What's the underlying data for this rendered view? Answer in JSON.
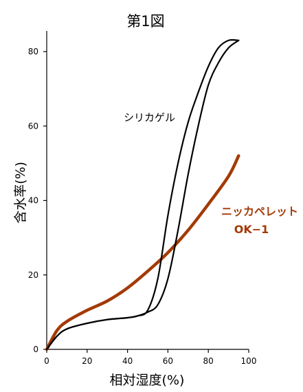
{
  "chart_data": {
    "type": "line",
    "title": "第1図",
    "xlabel": "相対湿度(%)",
    "ylabel": "含水率(%)",
    "xlim": [
      0,
      100
    ],
    "ylim": [
      0,
      85
    ],
    "xticks": [
      "0",
      "20",
      "40",
      "60",
      "80",
      "100"
    ],
    "yticks": [
      "0",
      "20",
      "40",
      "60",
      "80"
    ],
    "grid": false,
    "legend": "none",
    "series": [
      {
        "name": "シリカゲル",
        "color": "#000000",
        "x": [
          0,
          5,
          10,
          20,
          30,
          40,
          45,
          50,
          55,
          60,
          65,
          70,
          75,
          80,
          85,
          90,
          95
        ],
        "y": [
          0,
          3.5,
          5.5,
          7,
          8,
          8.5,
          9,
          10.5,
          19,
          36,
          50,
          61,
          69,
          76,
          81,
          83,
          83
        ]
      },
      {
        "name": "シリカゲル",
        "color": "#000000",
        "x": [
          0,
          5,
          10,
          20,
          30,
          40,
          45,
          50,
          55,
          60,
          65,
          70,
          75,
          80,
          85,
          90,
          95
        ],
        "y": [
          0,
          3.5,
          5.5,
          7,
          8,
          8.5,
          9,
          10,
          12,
          19,
          32,
          47,
          60,
          71,
          77,
          81,
          83
        ]
      },
      {
        "name": "ニッカペレット OK−1",
        "color": "#a33a06",
        "x": [
          0,
          5,
          10,
          20,
          30,
          40,
          50,
          60,
          70,
          80,
          90,
          95
        ],
        "y": [
          0,
          5,
          7.5,
          10.5,
          13,
          16.5,
          21,
          26,
          32,
          39,
          46.5,
          52
        ]
      }
    ],
    "annotations": [
      {
        "text": "シリカゲル",
        "color": "#000000"
      },
      {
        "text": "ニッカペレット",
        "color": "#a33a06"
      },
      {
        "text": "OK−1",
        "color": "#a33a06"
      }
    ]
  }
}
